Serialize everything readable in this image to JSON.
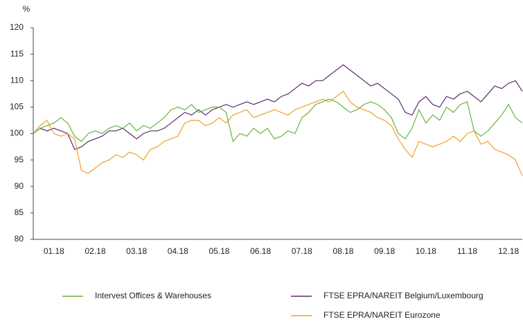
{
  "chart_data": {
    "type": "line",
    "y_label": "%",
    "categories": [
      null,
      null,
      null,
      "01.18",
      null,
      null,
      null,
      null,
      null,
      "02.18",
      null,
      null,
      null,
      null,
      null,
      "03.18",
      null,
      null,
      null,
      null,
      null,
      "04.18",
      null,
      null,
      null,
      null,
      null,
      "05.18",
      null,
      null,
      null,
      null,
      null,
      "06.18",
      null,
      null,
      null,
      null,
      null,
      "07.18",
      null,
      null,
      null,
      null,
      null,
      "08.18",
      null,
      null,
      null,
      null,
      null,
      "09.18",
      null,
      null,
      null,
      null,
      null,
      "10.18",
      null,
      null,
      null,
      null,
      null,
      "11.18",
      null,
      null,
      null,
      null,
      null,
      "12.18",
      null,
      null
    ],
    "series": [
      {
        "name": "Intervest Offices & Warehouses",
        "color": "#6ab23e",
        "values": [
          100,
          101,
          101.5,
          102,
          103,
          102,
          99.5,
          98.5,
          100,
          100.5,
          100,
          101,
          101.5,
          101,
          102,
          100.5,
          101.5,
          101,
          102,
          103,
          104.5,
          105,
          104.5,
          105.5,
          104,
          104.5,
          105,
          105,
          104,
          98.5,
          100,
          99.5,
          101,
          100,
          101,
          99,
          99.5,
          100.5,
          100,
          103,
          104,
          105.5,
          106,
          106.5,
          106,
          105,
          104,
          104.5,
          105.5,
          106,
          105.5,
          104.5,
          103,
          100,
          99,
          101,
          104.5,
          102,
          103.5,
          102.5,
          105,
          104,
          105.5,
          106,
          100.5,
          99.5,
          100.5,
          102,
          103.5,
          105.5,
          103,
          102
        ]
      },
      {
        "name": "FTSE EPRA/NAREIT Belgium/Luxembourg",
        "color": "#5c2a6e",
        "values": [
          100,
          101,
          100.5,
          101,
          100.5,
          100,
          97,
          97.5,
          98.5,
          99,
          99.5,
          100.5,
          100.5,
          101,
          100,
          99,
          100,
          100.5,
          100.5,
          101,
          102,
          103,
          104,
          103.5,
          104.5,
          103.5,
          104.5,
          105,
          105.5,
          105,
          105.5,
          106,
          105.5,
          106,
          106.5,
          106,
          107,
          107.5,
          108.5,
          109.5,
          109,
          110,
          110,
          111,
          112,
          113,
          112,
          111,
          110,
          109,
          109.5,
          108.5,
          107.5,
          106.5,
          104,
          103.5,
          106,
          107,
          105.5,
          105,
          107,
          106.5,
          107.5,
          108,
          107,
          106,
          107.5,
          109,
          108.5,
          109.5,
          110,
          108
        ]
      },
      {
        "name": "FTSE EPRA/NAREIT Eurozone",
        "color": "#f0a024",
        "values": [
          100,
          101.5,
          102.5,
          100,
          99.5,
          100,
          99,
          93,
          92.5,
          93.5,
          94.5,
          95,
          96,
          95.5,
          96.5,
          96,
          95,
          97,
          97.5,
          98.5,
          99,
          99.5,
          102,
          102.5,
          102.5,
          101.5,
          102,
          103,
          102,
          103.5,
          104,
          104.5,
          103,
          103.5,
          104,
          104.5,
          104,
          103.5,
          104.5,
          105,
          105.5,
          106,
          106.5,
          106,
          107,
          108,
          106,
          105,
          104.5,
          104,
          103,
          102.5,
          101.5,
          99,
          97,
          95.5,
          98.5,
          98,
          97.5,
          98,
          98.5,
          99.5,
          98.5,
          100,
          100.5,
          98,
          98.5,
          97,
          96.5,
          96,
          95,
          92
        ]
      }
    ],
    "ylim": [
      80,
      120
    ],
    "yticks": [
      80,
      85,
      90,
      95,
      100,
      105,
      110,
      115,
      120
    ]
  }
}
